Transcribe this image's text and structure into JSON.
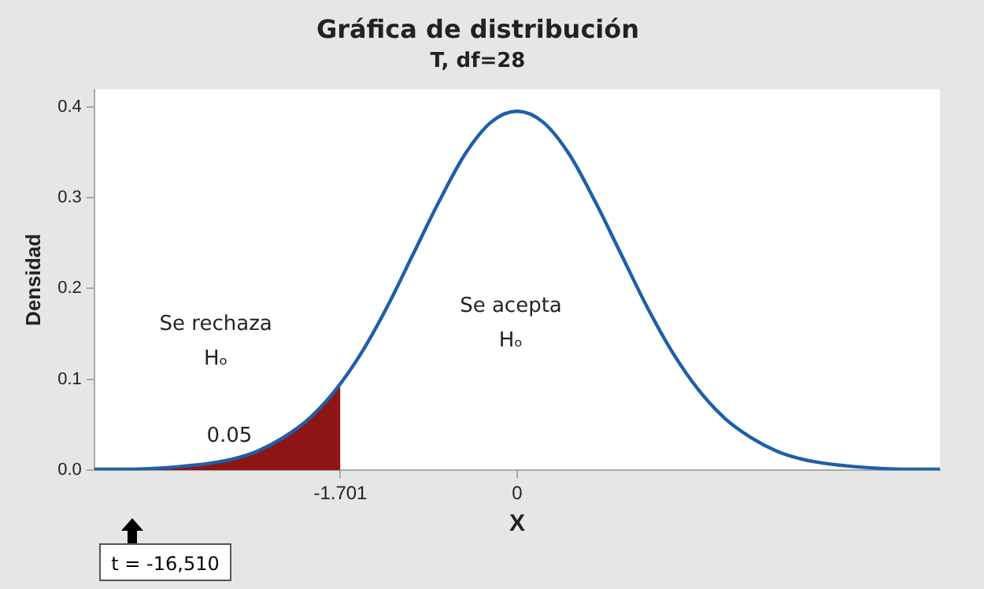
{
  "chart_data": {
    "type": "line",
    "title": "Gráfica de distribución",
    "subtitle": "T, df=28",
    "xlabel": "X",
    "ylabel": "Densidad",
    "xlim": [
      -4.07,
      4.07
    ],
    "xticks": [
      -1.701,
      0
    ],
    "ylim": [
      0,
      0.419
    ],
    "yticks": [
      {
        "value": 0,
        "label": "0.0"
      },
      {
        "value": 0.1,
        "label": "0.1"
      },
      {
        "value": 0.2,
        "label": "0.2"
      },
      {
        "value": 0.3,
        "label": "0.3"
      },
      {
        "value": 0.4,
        "label": "0.4"
      }
    ],
    "grid": false,
    "legend": false,
    "marker": "none",
    "series": [
      {
        "type": "area",
        "color": "#8e1515",
        "x": [
          -4.07,
          -3.75,
          -3.5,
          -3.25,
          -3,
          -2.75,
          -2.5,
          -2.25,
          -2,
          -1.75,
          -1.701
        ],
        "values": [
          0.001,
          0.001,
          0.002,
          0.004,
          0.007,
          0.012,
          0.021,
          0.036,
          0.057,
          0.088,
          0.095
        ]
      },
      {
        "type": "line",
        "color": "#1f5fa8",
        "x": [
          -4.07,
          -3.75,
          -3.5,
          -3.25,
          -3,
          -2.75,
          -2.5,
          -2.25,
          -2,
          -1.75,
          -1.5,
          -1.25,
          -1,
          -0.75,
          -0.5,
          -0.25,
          0,
          0.25,
          0.5,
          0.75,
          1,
          1.25,
          1.5,
          1.75,
          2,
          2.25,
          2.5,
          2.75,
          3,
          3.25,
          3.5,
          3.75,
          4.07
        ],
        "values": [
          0.001,
          0.001,
          0.002,
          0.004,
          0.007,
          0.012,
          0.021,
          0.036,
          0.057,
          0.088,
          0.129,
          0.18,
          0.238,
          0.296,
          0.348,
          0.383,
          0.395,
          0.383,
          0.348,
          0.296,
          0.238,
          0.18,
          0.129,
          0.088,
          0.057,
          0.036,
          0.021,
          0.012,
          0.007,
          0.004,
          0.002,
          0.001,
          0.001
        ]
      }
    ],
    "annotations": [
      "Se rechaza\nHₒ",
      "Se acepta\nHₒ",
      "0.05",
      "t = -16,510"
    ]
  }
}
